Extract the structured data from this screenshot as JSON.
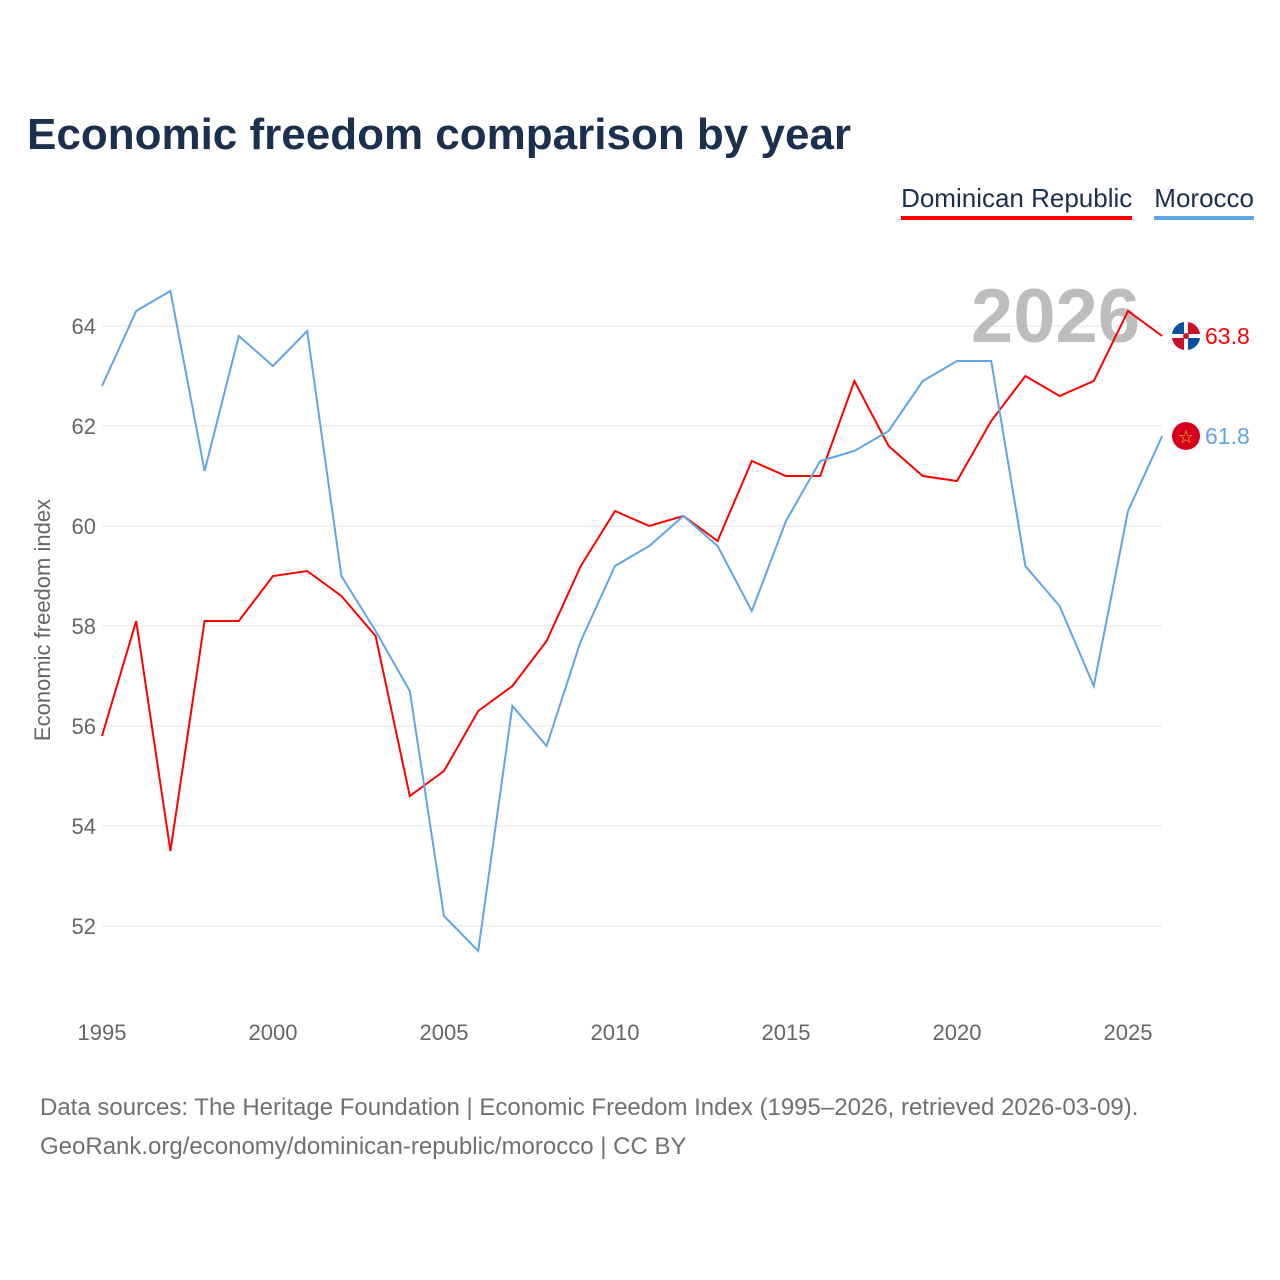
{
  "title": "Economic freedom comparison by year",
  "source_line1": "Data sources: The Heritage Foundation | Economic Freedom Index (1995–2026, retrieved 2026-03-09).",
  "source_line2": "GeoRank.org/economy/dominican-republic/morocco | CC BY",
  "chart_data": {
    "type": "line",
    "title": "Economic freedom comparison by year",
    "xlabel": "",
    "ylabel": "Economic freedom index",
    "year_label": "2026",
    "x": [
      1995,
      1996,
      1997,
      1998,
      1999,
      2000,
      2001,
      2002,
      2003,
      2004,
      2005,
      2006,
      2007,
      2008,
      2009,
      2010,
      2011,
      2012,
      2013,
      2014,
      2015,
      2016,
      2017,
      2018,
      2019,
      2020,
      2021,
      2022,
      2023,
      2024,
      2025,
      2026
    ],
    "xticks": [
      1995,
      2000,
      2005,
      2010,
      2015,
      2020,
      2025
    ],
    "yticks": [
      52,
      54,
      56,
      58,
      60,
      62,
      64
    ],
    "xlim": [
      1995,
      2026
    ],
    "ylim": [
      50.5,
      65.5
    ],
    "legend_position": "top-right",
    "series": [
      {
        "name": "Dominican Republic",
        "color": "#ff0000",
        "end_label": "63.8",
        "flag": "dominican-republic-flag",
        "values": [
          55.8,
          58.1,
          53.5,
          58.1,
          58.1,
          59.0,
          59.1,
          58.6,
          57.8,
          54.6,
          55.1,
          56.3,
          56.8,
          57.7,
          59.2,
          60.3,
          60.0,
          60.2,
          59.7,
          61.3,
          61.0,
          61.0,
          62.9,
          61.6,
          61.0,
          60.9,
          62.1,
          63.0,
          62.6,
          62.9,
          64.3,
          63.8
        ]
      },
      {
        "name": "Morocco",
        "color": "#5fa5e8",
        "end_label": "61.8",
        "flag": "morocco-flag",
        "values": [
          62.8,
          64.3,
          64.7,
          61.1,
          63.8,
          63.2,
          63.9,
          59.0,
          57.9,
          56.7,
          52.2,
          51.5,
          56.4,
          55.6,
          57.7,
          59.2,
          59.6,
          60.2,
          59.6,
          58.3,
          60.1,
          61.3,
          61.5,
          61.9,
          62.9,
          63.3,
          63.3,
          59.2,
          58.4,
          56.8,
          60.3,
          61.8
        ]
      }
    ]
  }
}
